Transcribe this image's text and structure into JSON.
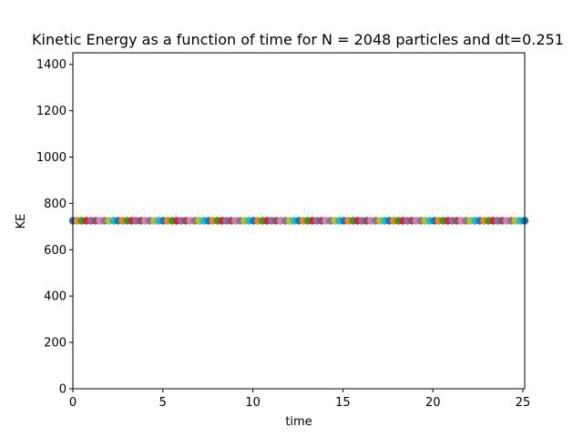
{
  "chart_data": {
    "type": "scatter",
    "title": "Kinetic Energy as a function of time for N = 2048 particles and dt=0.251",
    "xlabel": "time",
    "ylabel": "KE",
    "xlim": [
      0,
      25.1
    ],
    "ylim": [
      0,
      1450
    ],
    "x_ticks": [
      0,
      5,
      10,
      15,
      20,
      25
    ],
    "x_tick_labels": [
      "0",
      "5",
      "10",
      "15",
      "20",
      "25"
    ],
    "y_ticks": [
      0,
      200,
      400,
      600,
      800,
      1000,
      1200,
      1400
    ],
    "y_tick_labels": [
      "0",
      "200",
      "400",
      "600",
      "800",
      "1000",
      "1200",
      "1400"
    ],
    "grid": false,
    "legend": "none",
    "point_value_ke": 725,
    "x_start": 0,
    "x_step": 0.251,
    "point_count": 101,
    "marker_colors": [
      "#1f77b4",
      "#ff7f0e",
      "#2ca02c",
      "#d62728",
      "#9467bd",
      "#8c564b",
      "#e377c2",
      "#7f7f7f",
      "#bcbd22",
      "#17becf"
    ]
  }
}
